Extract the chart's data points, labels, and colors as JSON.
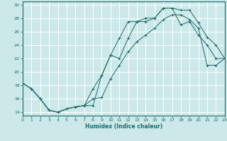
{
  "xlabel": "Humidex (Indice chaleur)",
  "bg_color": "#cce8e8",
  "grid_color": "#ffffff",
  "line_color": "#1a6b6b",
  "xlim": [
    0,
    23
  ],
  "ylim": [
    13.5,
    30.5
  ],
  "xticks": [
    0,
    1,
    2,
    3,
    4,
    5,
    6,
    7,
    8,
    9,
    10,
    11,
    12,
    13,
    14,
    15,
    16,
    17,
    18,
    19,
    20,
    21,
    22,
    23
  ],
  "yticks": [
    14,
    16,
    18,
    20,
    22,
    24,
    26,
    28,
    30
  ],
  "line1_x": [
    0,
    1,
    2,
    3,
    4,
    5,
    6,
    7,
    8,
    9,
    10,
    11,
    12,
    13,
    14,
    15,
    16,
    17,
    18,
    19,
    20,
    21,
    22,
    23
  ],
  "line1_y": [
    18.3,
    17.5,
    16.0,
    14.3,
    14.0,
    14.5,
    14.8,
    15.0,
    15.0,
    19.5,
    22.5,
    25.0,
    27.5,
    27.5,
    28.0,
    28.0,
    29.5,
    29.5,
    29.2,
    29.2,
    27.3,
    25.2,
    24.0,
    22.0
  ],
  "line2_x": [
    0,
    1,
    2,
    3,
    4,
    5,
    6,
    7,
    8,
    9,
    10,
    11,
    12,
    13,
    14,
    15,
    16,
    17,
    18,
    19,
    20,
    21,
    22,
    23
  ],
  "line2_y": [
    18.3,
    17.5,
    16.0,
    14.3,
    14.0,
    14.5,
    14.8,
    15.0,
    17.5,
    19.5,
    22.5,
    22.0,
    25.0,
    27.5,
    27.5,
    28.0,
    29.5,
    29.5,
    27.0,
    27.5,
    25.5,
    24.0,
    22.0,
    22.0
  ],
  "line3_x": [
    0,
    1,
    2,
    3,
    4,
    5,
    6,
    7,
    8,
    9,
    10,
    11,
    12,
    13,
    14,
    15,
    16,
    17,
    18,
    19,
    20,
    21,
    22,
    23
  ],
  "line3_y": [
    18.3,
    17.5,
    16.0,
    14.3,
    14.0,
    14.5,
    14.8,
    15.0,
    16.0,
    16.2,
    19.0,
    21.0,
    23.0,
    24.5,
    25.5,
    26.5,
    27.8,
    28.5,
    28.5,
    27.8,
    26.5,
    21.0,
    21.0,
    22.0
  ]
}
